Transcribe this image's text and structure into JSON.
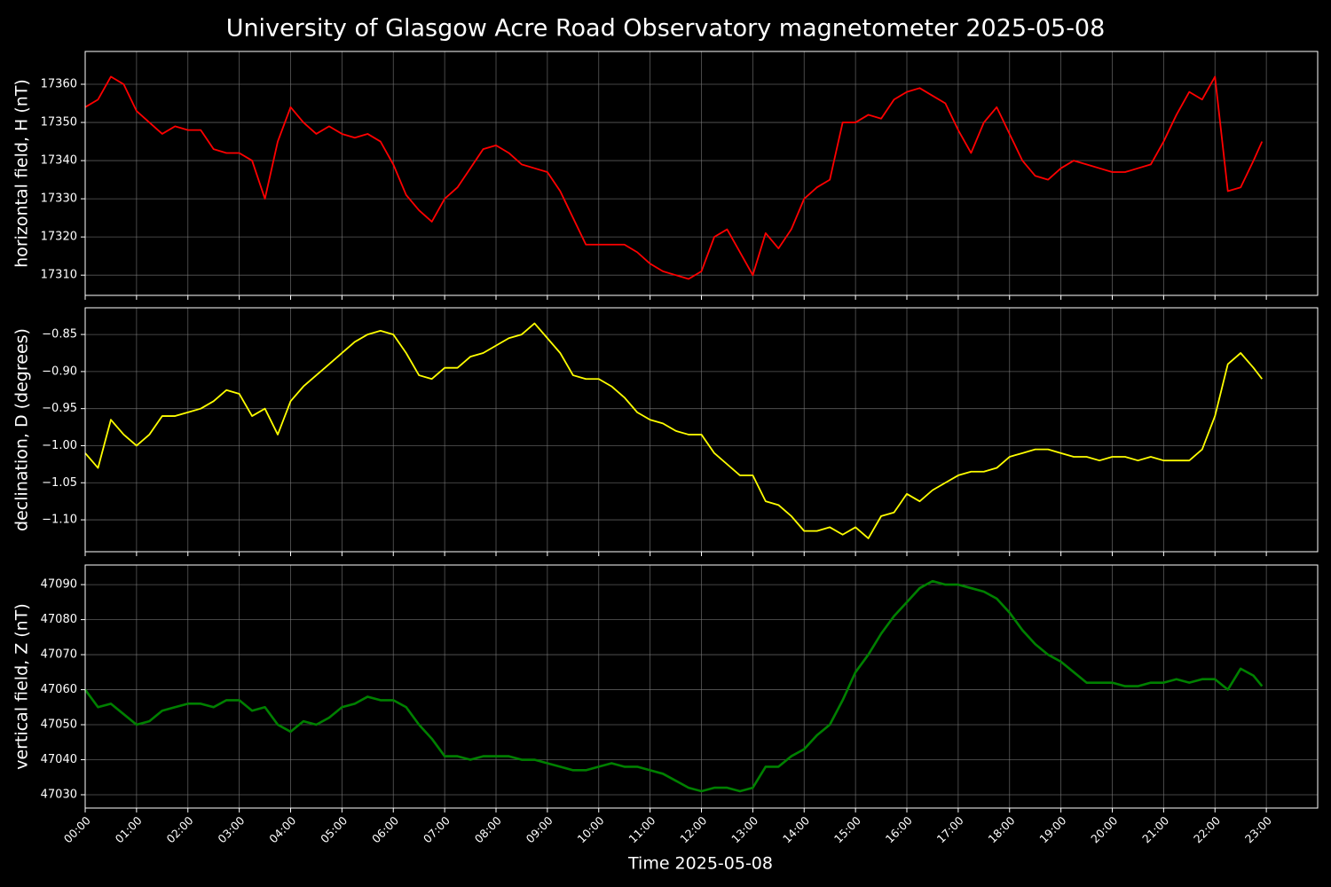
{
  "title": "University of Glasgow Acre Road Observatory magnetometer 2025-05-08",
  "chart_data": [
    {
      "type": "line",
      "ylabel": "horizontal field, H (nT)",
      "color": "#ff0000",
      "x": [
        "00:00",
        "00:15",
        "00:30",
        "00:45",
        "01:00",
        "01:15",
        "01:30",
        "01:45",
        "02:00",
        "02:15",
        "02:30",
        "02:45",
        "03:00",
        "03:15",
        "03:30",
        "03:45",
        "04:00",
        "04:15",
        "04:30",
        "04:45",
        "05:00",
        "05:15",
        "05:30",
        "05:45",
        "06:00",
        "06:15",
        "06:30",
        "06:45",
        "07:00",
        "07:15",
        "07:30",
        "07:45",
        "08:00",
        "08:15",
        "08:30",
        "08:45",
        "09:00",
        "09:15",
        "09:30",
        "09:45",
        "10:00",
        "10:15",
        "10:30",
        "10:45",
        "11:00",
        "11:15",
        "11:30",
        "11:45",
        "12:00",
        "12:15",
        "12:30",
        "12:45",
        "13:00",
        "13:15",
        "13:30",
        "13:45",
        "14:00",
        "14:15",
        "14:30",
        "14:45",
        "15:00",
        "15:15",
        "15:30",
        "15:45",
        "16:00",
        "16:15",
        "16:30",
        "16:45",
        "17:00",
        "17:15",
        "17:30",
        "17:45",
        "18:00",
        "18:15",
        "18:30",
        "18:45",
        "19:00",
        "19:15",
        "19:30",
        "19:45",
        "20:00",
        "20:15",
        "20:30",
        "20:45",
        "21:00",
        "21:15",
        "21:30",
        "21:45",
        "22:00",
        "22:15",
        "22:30",
        "22:45",
        "22:55"
      ],
      "values": [
        17354,
        17356,
        17362,
        17360,
        17353,
        17350,
        17347,
        17349,
        17348,
        17348,
        17343,
        17342,
        17342,
        17340,
        17330,
        17345,
        17354,
        17350,
        17347,
        17349,
        17347,
        17346,
        17347,
        17345,
        17339,
        17331,
        17327,
        17324,
        17330,
        17333,
        17338,
        17343,
        17344,
        17342,
        17339,
        17338,
        17337,
        17332,
        17325,
        17318,
        17318,
        17318,
        17318,
        17316,
        17313,
        17311,
        17310,
        17309,
        17311,
        17320,
        17322,
        17316,
        17310,
        17321,
        17317,
        17322,
        17330,
        17333,
        17335,
        17350,
        17350,
        17352,
        17351,
        17356,
        17358,
        17359,
        17357,
        17355,
        17348,
        17342,
        17350,
        17354,
        17347,
        17340,
        17336,
        17335,
        17338,
        17340,
        17339,
        17338,
        17337,
        17337,
        17338,
        17339,
        17345,
        17352,
        17358,
        17356,
        17362,
        17332,
        17333,
        17340,
        17345
      ],
      "xlim": [
        "00:00",
        "24:00"
      ],
      "xticks": [
        "00:00",
        "01:00",
        "02:00",
        "03:00",
        "04:00",
        "05:00",
        "06:00",
        "07:00",
        "08:00",
        "09:00",
        "10:00",
        "11:00",
        "12:00",
        "13:00",
        "14:00",
        "15:00",
        "16:00",
        "17:00",
        "18:00",
        "19:00",
        "20:00",
        "21:00",
        "22:00",
        "23:00"
      ],
      "ylim": [
        17304.7,
        17368.6
      ],
      "yticks": [
        17310,
        17320,
        17330,
        17340,
        17350,
        17360
      ],
      "grid": true
    },
    {
      "type": "line",
      "ylabel": "declination, D (degrees)",
      "color": "#ffff00",
      "x": [
        "00:00",
        "00:15",
        "00:30",
        "00:45",
        "01:00",
        "01:15",
        "01:30",
        "01:45",
        "02:00",
        "02:15",
        "02:30",
        "02:45",
        "03:00",
        "03:15",
        "03:30",
        "03:45",
        "04:00",
        "04:15",
        "04:30",
        "04:45",
        "05:00",
        "05:15",
        "05:30",
        "05:45",
        "06:00",
        "06:15",
        "06:30",
        "06:45",
        "07:00",
        "07:15",
        "07:30",
        "07:45",
        "08:00",
        "08:15",
        "08:30",
        "08:45",
        "09:00",
        "09:15",
        "09:30",
        "09:45",
        "10:00",
        "10:15",
        "10:30",
        "10:45",
        "11:00",
        "11:15",
        "11:30",
        "11:45",
        "12:00",
        "12:15",
        "12:30",
        "12:45",
        "13:00",
        "13:15",
        "13:30",
        "13:45",
        "14:00",
        "14:15",
        "14:30",
        "14:45",
        "15:00",
        "15:15",
        "15:30",
        "15:45",
        "16:00",
        "16:15",
        "16:30",
        "16:45",
        "17:00",
        "17:15",
        "17:30",
        "17:45",
        "18:00",
        "18:15",
        "18:30",
        "18:45",
        "19:00",
        "19:15",
        "19:30",
        "19:45",
        "20:00",
        "20:15",
        "20:30",
        "20:45",
        "21:00",
        "21:15",
        "21:30",
        "21:45",
        "22:00",
        "22:15",
        "22:30",
        "22:45",
        "22:55"
      ],
      "values": [
        -1.01,
        -1.03,
        -0.965,
        -0.985,
        -1.0,
        -0.985,
        -0.96,
        -0.96,
        -0.955,
        -0.95,
        -0.94,
        -0.925,
        -0.93,
        -0.96,
        -0.95,
        -0.985,
        -0.94,
        -0.92,
        -0.905,
        -0.89,
        -0.875,
        -0.86,
        -0.85,
        -0.845,
        -0.85,
        -0.875,
        -0.905,
        -0.91,
        -0.895,
        -0.895,
        -0.88,
        -0.875,
        -0.865,
        -0.855,
        -0.85,
        -0.835,
        -0.855,
        -0.875,
        -0.905,
        -0.91,
        -0.91,
        -0.92,
        -0.935,
        -0.955,
        -0.965,
        -0.97,
        -0.98,
        -0.985,
        -0.985,
        -1.01,
        -1.025,
        -1.04,
        -1.04,
        -1.075,
        -1.08,
        -1.095,
        -1.115,
        -1.115,
        -1.11,
        -1.12,
        -1.11,
        -1.125,
        -1.095,
        -1.09,
        -1.065,
        -1.075,
        -1.06,
        -1.05,
        -1.04,
        -1.035,
        -1.035,
        -1.03,
        -1.015,
        -1.01,
        -1.005,
        -1.005,
        -1.01,
        -1.015,
        -1.015,
        -1.02,
        -1.015,
        -1.015,
        -1.02,
        -1.015,
        -1.02,
        -1.02,
        -1.02,
        -1.005,
        -0.96,
        -0.89,
        -0.875,
        -0.895,
        -0.91
      ],
      "xlim": [
        "00:00",
        "24:00"
      ],
      "xticks": [
        "00:00",
        "01:00",
        "02:00",
        "03:00",
        "04:00",
        "05:00",
        "06:00",
        "07:00",
        "08:00",
        "09:00",
        "10:00",
        "11:00",
        "12:00",
        "13:00",
        "14:00",
        "15:00",
        "16:00",
        "17:00",
        "18:00",
        "19:00",
        "20:00",
        "21:00",
        "22:00",
        "23:00"
      ],
      "ylim": [
        -1.143,
        -0.814
      ],
      "yticks": [
        {
          "value": -1.1,
          "label": "−1.10"
        },
        {
          "value": -1.05,
          "label": "−1.05"
        },
        {
          "value": -1.0,
          "label": "−1.00"
        },
        {
          "value": -0.95,
          "label": "−0.95"
        },
        {
          "value": -0.9,
          "label": "−0.90"
        },
        {
          "value": -0.85,
          "label": "−0.85"
        }
      ],
      "grid": true
    },
    {
      "type": "line",
      "ylabel": "vertical field, Z (nT)",
      "xlabel": "Time 2025-05-08",
      "color": "#008000",
      "x": [
        "00:00",
        "00:15",
        "00:30",
        "00:45",
        "01:00",
        "01:15",
        "01:30",
        "01:45",
        "02:00",
        "02:15",
        "02:30",
        "02:45",
        "03:00",
        "03:15",
        "03:30",
        "03:45",
        "04:00",
        "04:15",
        "04:30",
        "04:45",
        "05:00",
        "05:15",
        "05:30",
        "05:45",
        "06:00",
        "06:15",
        "06:30",
        "06:45",
        "07:00",
        "07:15",
        "07:30",
        "07:45",
        "08:00",
        "08:15",
        "08:30",
        "08:45",
        "09:00",
        "09:15",
        "09:30",
        "09:45",
        "10:00",
        "10:15",
        "10:30",
        "10:45",
        "11:00",
        "11:15",
        "11:30",
        "11:45",
        "12:00",
        "12:15",
        "12:30",
        "12:45",
        "13:00",
        "13:15",
        "13:30",
        "13:45",
        "14:00",
        "14:15",
        "14:30",
        "14:45",
        "15:00",
        "15:15",
        "15:30",
        "15:45",
        "16:00",
        "16:15",
        "16:30",
        "16:45",
        "17:00",
        "17:15",
        "17:30",
        "17:45",
        "18:00",
        "18:15",
        "18:30",
        "18:45",
        "19:00",
        "19:15",
        "19:30",
        "19:45",
        "20:00",
        "20:15",
        "20:30",
        "20:45",
        "21:00",
        "21:15",
        "21:30",
        "21:45",
        "22:00",
        "22:15",
        "22:30",
        "22:45",
        "22:55"
      ],
      "values": [
        47060,
        47055,
        47056,
        47053,
        47050,
        47051,
        47054,
        47055,
        47056,
        47056,
        47055,
        47057,
        47057,
        47054,
        47055,
        47050,
        47048,
        47051,
        47050,
        47052,
        47055,
        47056,
        47058,
        47057,
        47057,
        47055,
        47050,
        47046,
        47041,
        47041,
        47040,
        47041,
        47041,
        47041,
        47040,
        47040,
        47039,
        47038,
        47037,
        47037,
        47038,
        47039,
        47038,
        47038,
        47037,
        47036,
        47034,
        47032,
        47031,
        47032,
        47032,
        47031,
        47032,
        47038,
        47038,
        47041,
        47043,
        47047,
        47050,
        47057,
        47065,
        47070,
        47076,
        47081,
        47085,
        47089,
        47091,
        47090,
        47090,
        47089,
        47088,
        47086,
        47082,
        47077,
        47073,
        47070,
        47068,
        47065,
        47062,
        47062,
        47062,
        47061,
        47061,
        47062,
        47062,
        47063,
        47062,
        47063,
        47063,
        47060,
        47066,
        47064,
        47061
      ],
      "xlim": [
        "00:00",
        "24:00"
      ],
      "xticks": [
        "00:00",
        "01:00",
        "02:00",
        "03:00",
        "04:00",
        "05:00",
        "06:00",
        "07:00",
        "08:00",
        "09:00",
        "10:00",
        "11:00",
        "12:00",
        "13:00",
        "14:00",
        "15:00",
        "16:00",
        "17:00",
        "18:00",
        "19:00",
        "20:00",
        "21:00",
        "22:00",
        "23:00"
      ],
      "ylim": [
        47026.2,
        47095.6
      ],
      "yticks": [
        47030,
        47040,
        47050,
        47060,
        47070,
        47080,
        47090
      ],
      "grid": true
    }
  ]
}
